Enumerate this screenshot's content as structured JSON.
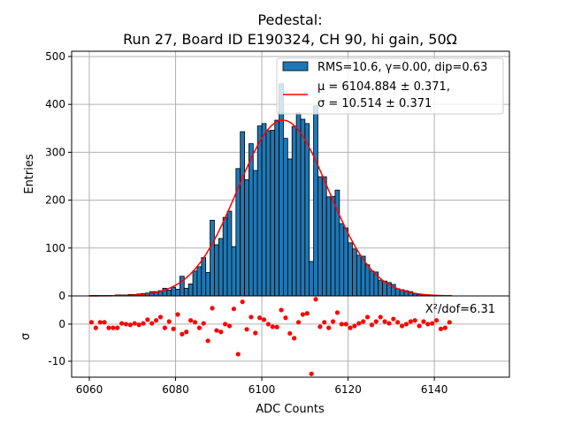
{
  "chart_data": [
    {
      "type": "bar",
      "title_line1": "Pedestal:",
      "title_line2": "Run 27, Board ID E190324, CH 90, hi gain, 50Ω",
      "xlabel": "",
      "ylabel": "Entries",
      "xlim": [
        6055.9,
        6157.4
      ],
      "ylim": [
        0,
        511
      ],
      "grid": true,
      "yticks": [
        0,
        100,
        200,
        300,
        400,
        500
      ],
      "bin_width": 1,
      "bin_start": [
        6060,
        6061,
        6062,
        6063,
        6064,
        6065,
        6066,
        6067,
        6068,
        6069,
        6070,
        6071,
        6072,
        6073,
        6074,
        6075,
        6076,
        6077,
        6078,
        6079,
        6080,
        6081,
        6082,
        6083,
        6084,
        6085,
        6086,
        6087,
        6088,
        6089,
        6090,
        6091,
        6092,
        6093,
        6094,
        6095,
        6096,
        6097,
        6098,
        6099,
        6100,
        6101,
        6102,
        6103,
        6104,
        6105,
        6106,
        6107,
        6108,
        6109,
        6110,
        6111,
        6112,
        6113,
        6114,
        6115,
        6116,
        6117,
        6118,
        6119,
        6120,
        6121,
        6122,
        6123,
        6124,
        6125,
        6126,
        6127,
        6128,
        6129,
        6130,
        6131,
        6132,
        6133,
        6134,
        6135,
        6136,
        6137,
        6138,
        6139,
        6140,
        6141,
        6142,
        6143
      ],
      "values": [
        1,
        1,
        1,
        1,
        1,
        1,
        2,
        2,
        2,
        3,
        3,
        4,
        5,
        6,
        9,
        9,
        11,
        16,
        12,
        18,
        14,
        41,
        16,
        25,
        52,
        61,
        80,
        49,
        158,
        107,
        120,
        164,
        177,
        103,
        266,
        343,
        243,
        318,
        262,
        355,
        360,
        345,
        346,
        367,
        443,
        329,
        286,
        354,
        382,
        369,
        360,
        72,
        397,
        249,
        249,
        207,
        208,
        221,
        151,
        142,
        111,
        98,
        85,
        83,
        65,
        52,
        50,
        33,
        31,
        28,
        24,
        15,
        13,
        11,
        9,
        4,
        3,
        2,
        2,
        1,
        1,
        1,
        1,
        1
      ],
      "bar_color": "#1f77b4",
      "fit": {
        "mu": 6104.884,
        "sigma": 10.514,
        "amplitude": 367,
        "color": "#ff0000",
        "x_range": [
          6060,
          6144
        ]
      },
      "legend": {
        "placement": "top-right",
        "hist_label": "RMS=10.6, γ=0.00, dip=0.63",
        "fit_label_line1": "μ = 6104.884 ± 0.371,",
        "fit_label_line2": "σ = 10.514 ± 0.371"
      }
    },
    {
      "type": "scatter",
      "xlabel": "ADC Counts",
      "ylabel": "σ",
      "xlim": [
        6055.9,
        6157.4
      ],
      "ylim": [
        -14.3,
        7.6
      ],
      "grid": true,
      "xticks": [
        6060,
        6080,
        6100,
        6120,
        6140
      ],
      "yticks": [
        0,
        -10
      ],
      "annotation": "X²/dof=6.31",
      "point_color": "#ff0000",
      "x": [
        6060.5,
        6061.5,
        6062.5,
        6063.5,
        6064.5,
        6065.5,
        6066.5,
        6067.5,
        6068.5,
        6069.5,
        6070.5,
        6071.5,
        6072.5,
        6073.5,
        6074.5,
        6075.5,
        6076.5,
        6077.5,
        6078.5,
        6079.5,
        6080.5,
        6081.5,
        6082.5,
        6083.5,
        6084.5,
        6085.5,
        6086.5,
        6087.5,
        6088.5,
        6089.5,
        6090.5,
        6091.5,
        6092.5,
        6093.5,
        6094.5,
        6095.5,
        6096.5,
        6097.5,
        6098.5,
        6099.5,
        6100.5,
        6101.5,
        6102.5,
        6103.5,
        6104.5,
        6105.5,
        6106.5,
        6107.5,
        6108.5,
        6109.5,
        6110.5,
        6111.5,
        6112.5,
        6113.5,
        6114.5,
        6115.5,
        6116.5,
        6117.5,
        6118.5,
        6119.5,
        6120.5,
        6121.5,
        6122.5,
        6123.5,
        6124.5,
        6125.5,
        6126.5,
        6127.5,
        6128.5,
        6129.5,
        6130.5,
        6131.5,
        6132.5,
        6133.5,
        6134.5,
        6135.5,
        6136.5,
        6137.5,
        6138.5,
        6139.5,
        6140.5,
        6141.5,
        6142.5,
        6143.5
      ],
      "y": [
        0.5,
        -1.0,
        0.5,
        0.5,
        -1.0,
        -1.0,
        -1.0,
        0.2,
        0,
        -0.2,
        0.2,
        -0.2,
        0.2,
        1.2,
        0.2,
        1.0,
        1.9,
        -1.0,
        0.7,
        -1.3,
        2.6,
        -2.7,
        -2.1,
        1.0,
        0.5,
        -1.0,
        0.2,
        -4.5,
        4.3,
        -1.7,
        -2.1,
        0,
        -0.5,
        4.1,
        -8.1,
        6.0,
        -1.4,
        1.9,
        -2.4,
        1.7,
        1.2,
        0,
        -0.7,
        -0.8,
        3.8,
        1.7,
        -2.5,
        -3.8,
        0.5,
        2.6,
        2.9,
        -13.4,
        6.7,
        -0.7,
        0.5,
        -1.0,
        0.7,
        3.1,
        0,
        0,
        -1.0,
        -0.5,
        0.2,
        0.7,
        1.9,
        -0.2,
        0.7,
        1.9,
        0.7,
        0.2,
        1.4,
        0.5,
        -0.5,
        0,
        0.7,
        1.0,
        -0.5,
        0.7,
        0,
        0.2,
        1.0,
        -1.3,
        -1.0,
        0.5
      ]
    }
  ]
}
